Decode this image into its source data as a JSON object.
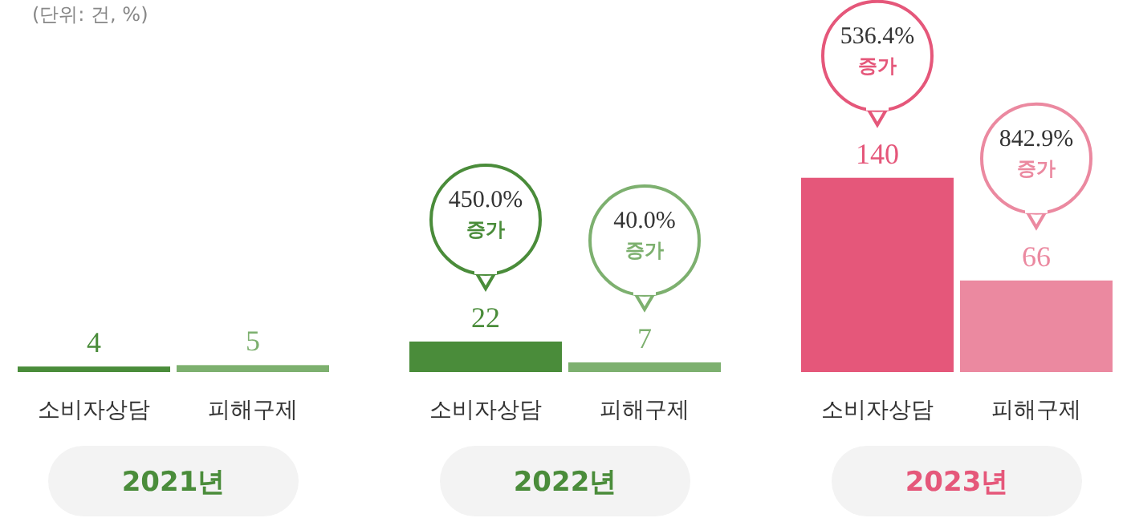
{
  "chart_data": {
    "type": "bar",
    "subtitle": "(단위: 건, %)",
    "categories": [
      "2021년",
      "2022년",
      "2023년"
    ],
    "series": [
      {
        "name": "소비자상담",
        "colors": [
          "#4a8c3a",
          "#4a8c3a",
          "#e5577a"
        ],
        "values": [
          4,
          22,
          140
        ]
      },
      {
        "name": "피해구제",
        "colors": [
          "#7db06f",
          "#7db06f",
          "#eb89a0"
        ],
        "values": [
          5,
          7,
          66
        ]
      }
    ],
    "data_labels": true,
    "legend": false,
    "annotations": [
      "450.0%\n증가",
      "40.0%\n증가",
      "536.4%\n증가",
      "842.9%\n증가"
    ]
  }
}
